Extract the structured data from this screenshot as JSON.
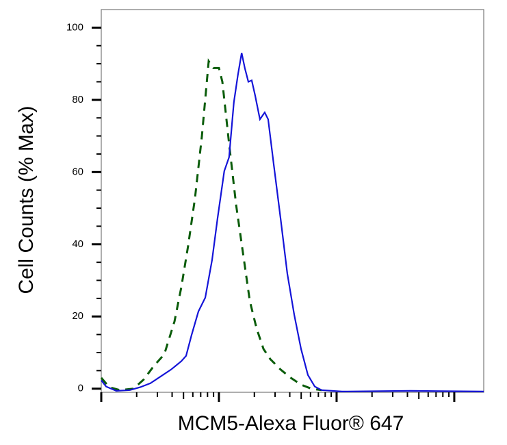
{
  "chart_data": {
    "type": "line",
    "x_label": "MCM5-Alexa Fluor® 647",
    "y_label": "Cell Counts (% Max)",
    "x_scale": "log",
    "xlim": [
      1,
      1780
    ],
    "xticks": [
      1,
      10,
      100,
      1000
    ],
    "ylim": [
      -1,
      105
    ],
    "yticks": [
      0,
      20,
      40,
      60,
      80,
      100
    ],
    "series": [
      {
        "color": "#0a5c0a",
        "dash": true,
        "x": [
          1,
          1.17,
          1.44,
          1.88,
          2.29,
          2.8,
          3.43,
          4.19,
          4.79,
          5.47,
          6.26,
          7.16,
          8.18,
          8.98,
          10.0,
          10.7,
          12.2,
          14.0,
          16.0,
          18.3,
          20.9,
          23.9,
          27.3,
          33.4,
          40.8,
          49.9,
          60.9,
          74.5
        ],
        "values": [
          3.0,
          0.4,
          -0.4,
          0,
          2.5,
          6.3,
          9.5,
          18.6,
          28.1,
          39.5,
          52.8,
          69.8,
          90.7,
          88.8,
          88.8,
          85.0,
          67.9,
          50.9,
          37.6,
          24.3,
          16.7,
          11.0,
          8.2,
          5.3,
          3.0,
          1.1,
          0,
          -0.4
        ]
      },
      {
        "color": "#1414d8",
        "dash": false,
        "x": [
          1,
          1.1,
          1.34,
          1.75,
          2.14,
          2.62,
          3.2,
          3.92,
          4.79,
          5.26,
          5.85,
          6.69,
          7.65,
          8.75,
          9.73,
          11.1,
          12.2,
          13.4,
          14.5,
          15.6,
          16.6,
          17.8,
          19.0,
          20.3,
          22.3,
          24.5,
          26.2,
          29.2,
          33.4,
          38.1,
          43.6,
          49.9,
          57.0,
          65.2,
          74.5,
          111,
          425,
          1780
        ],
        "values": [
          2.3,
          0.6,
          -0.6,
          -0.4,
          0.4,
          1.5,
          3.4,
          5.3,
          7.6,
          9.1,
          14.8,
          21.4,
          25.2,
          35.7,
          47.1,
          60.3,
          64.1,
          79.3,
          86.9,
          93.0,
          88.8,
          85.0,
          85.4,
          81.2,
          74.6,
          76.5,
          74.6,
          62.2,
          47.1,
          31.9,
          20.5,
          11.0,
          3.8,
          0.6,
          -0.4,
          -0.8,
          -0.6,
          -0.8
        ]
      }
    ]
  }
}
